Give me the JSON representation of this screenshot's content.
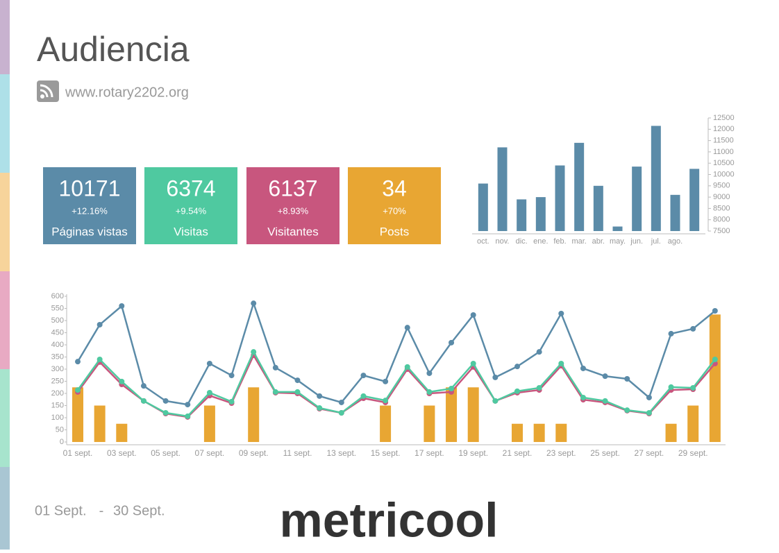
{
  "title": "Audiencia",
  "url": "www.rotary2202.org",
  "kpis": [
    {
      "value": 10171,
      "change": "+12.16%",
      "label": "Páginas vistas",
      "color": "#5b8ba8"
    },
    {
      "value": 6374,
      "change": "+9.54%",
      "label": "Visitas",
      "color": "#4fc9a0"
    },
    {
      "value": 6137,
      "change": "+8.93%",
      "label": "Visitantes",
      "color": "#c8567e"
    },
    {
      "value": 34,
      "change": "+70%",
      "label": "Posts",
      "color": "#e8a633"
    }
  ],
  "chart_data": [
    {
      "type": "bar",
      "categories": [
        "oct.",
        "nov.",
        "dic.",
        "ene.",
        "feb.",
        "mar.",
        "abr.",
        "may.",
        "jun.",
        "jul.",
        "ago.",
        null
      ],
      "values": [
        9600,
        11200,
        8900,
        9000,
        10400,
        11400,
        9500,
        7700,
        10350,
        12150,
        9100,
        10250
      ],
      "color": "#5b8ba8",
      "ylim": [
        7500,
        12500
      ],
      "yticks": [
        7500,
        8000,
        8500,
        9000,
        9500,
        10000,
        10500,
        11000,
        11500,
        12000,
        12500
      ],
      "axis_side": "right"
    },
    {
      "type": "combo",
      "categories": [
        "01 sept.",
        null,
        "03 sept.",
        null,
        "05 sept.",
        null,
        "07 sept.",
        null,
        "09 sept.",
        null,
        "11 sept.",
        null,
        "13 sept.",
        null,
        "15 sept.",
        null,
        "17 sept.",
        null,
        "19 sept.",
        null,
        "21 sept.",
        null,
        "23 sept.",
        null,
        "25 sept.",
        null,
        "27 sept.",
        null,
        "29 sept.",
        null
      ],
      "ylim": [
        0,
        600
      ],
      "yticks": [
        0,
        50,
        100,
        150,
        200,
        250,
        300,
        350,
        400,
        450,
        500,
        550,
        600
      ],
      "y2lim": [
        0,
        8
      ],
      "series": [
        {
          "type": "bar",
          "axis": "y2",
          "color": "#e8a633",
          "values": [
            3,
            2,
            1,
            0,
            0,
            0,
            2,
            0,
            3,
            0,
            0,
            0,
            0,
            0,
            2,
            0,
            2,
            3,
            3,
            0,
            1,
            1,
            1,
            0,
            0,
            0,
            0,
            1,
            2,
            7
          ]
        },
        {
          "type": "line",
          "color": "#5b8ba8",
          "values": [
            331,
            483,
            560,
            231,
            169,
            154,
            323,
            274,
            571,
            306,
            254,
            189,
            163,
            274,
            249,
            471,
            283,
            409,
            523,
            266,
            311,
            371,
            529,
            303,
            271,
            260,
            183,
            446,
            466,
            540
          ]
        },
        {
          "type": "line",
          "color": "#c8567e",
          "values": [
            206,
            329,
            237,
            169,
            117,
            103,
            191,
            160,
            357,
            203,
            200,
            137,
            120,
            180,
            163,
            300,
            200,
            206,
            309,
            169,
            203,
            214,
            314,
            174,
            163,
            129,
            117,
            214,
            217,
            323
          ]
        },
        {
          "type": "line",
          "color": "#4fc9a0",
          "values": [
            214,
            340,
            249,
            169,
            120,
            106,
            203,
            166,
            371,
            206,
            206,
            140,
            120,
            189,
            171,
            309,
            206,
            220,
            323,
            169,
            209,
            223,
            323,
            183,
            169,
            131,
            120,
            226,
            223,
            340
          ]
        }
      ]
    }
  ],
  "date_range": {
    "start": "01 Sept.",
    "separator": "-",
    "end": "30 Sept."
  },
  "logo": "metricool"
}
